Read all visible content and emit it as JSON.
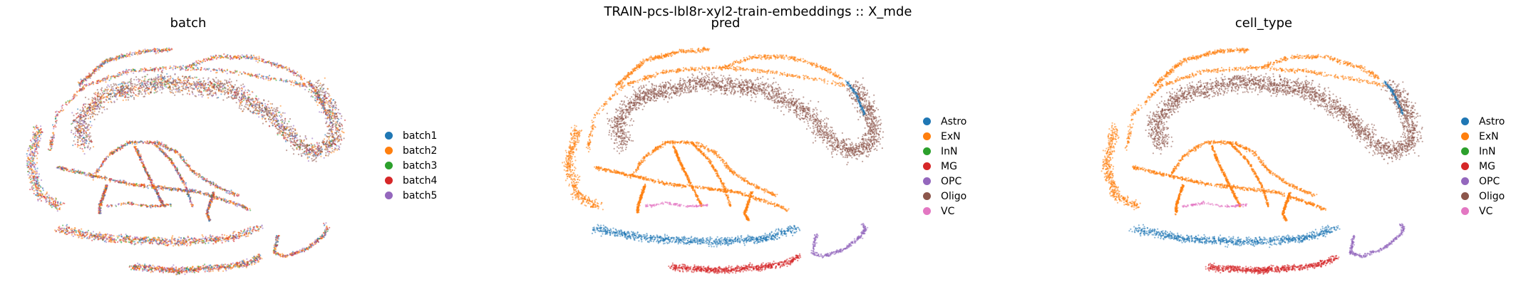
{
  "suptitle": "TRAIN-pcs-lbl8r-xyl2-train-embeddings :: X_mde",
  "chart_data": [
    {
      "type": "scatter",
      "title": "batch",
      "legend": [
        "batch1",
        "batch2",
        "batch3",
        "batch4",
        "batch5"
      ],
      "colors": [
        "#1f77b4",
        "#ff7f0e",
        "#2ca02c",
        "#d62728",
        "#9467bd"
      ],
      "color_mode": "mixed",
      "axes": "off",
      "legend_placement": "right"
    },
    {
      "type": "scatter",
      "title": "pred",
      "legend": [
        "Astro",
        "ExN",
        "InN",
        "MG",
        "OPC",
        "Oligo",
        "VC"
      ],
      "colors": [
        "#1f77b4",
        "#ff7f0e",
        "#2ca02c",
        "#d62728",
        "#9467bd",
        "#8c564b",
        "#e377c2"
      ],
      "color_mode": "by_cluster",
      "axes": "off",
      "legend_placement": "right"
    },
    {
      "type": "scatter",
      "title": "cell_type",
      "legend": [
        "Astro",
        "ExN",
        "InN",
        "MG",
        "OPC",
        "Oligo",
        "VC"
      ],
      "colors": [
        "#1f77b4",
        "#ff7f0e",
        "#2ca02c",
        "#d62728",
        "#9467bd",
        "#8c564b",
        "#e377c2"
      ],
      "color_mode": "by_cluster",
      "axes": "off",
      "legend_placement": "right"
    }
  ]
}
